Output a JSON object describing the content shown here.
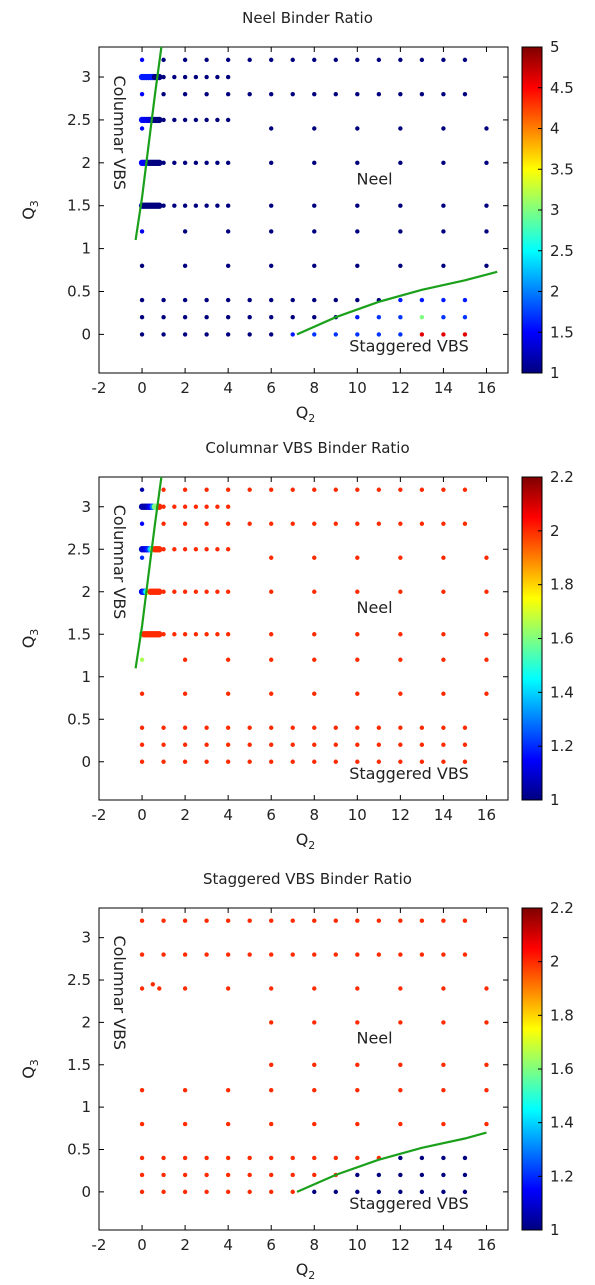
{
  "colormap": {
    "name": "jet",
    "stops": [
      "#00007f",
      "#0000ff",
      "#007fff",
      "#00ffff",
      "#7fff7f",
      "#ffff00",
      "#ff7f00",
      "#ff0000",
      "#7f0000"
    ]
  },
  "phase_boundary_color": "#1aa01a",
  "chart_data": [
    {
      "type": "scatter",
      "title": "Neel Binder Ratio",
      "xlabel": "Q",
      "xlabel_sub": "2",
      "ylabel": "Q",
      "ylabel_sub": "3",
      "xlim": [
        -2,
        17
      ],
      "ylim": [
        -0.45,
        3.35
      ],
      "xticks": [
        -2,
        0,
        2,
        4,
        6,
        8,
        10,
        12,
        14,
        16
      ],
      "xtick_labels": [
        "-2",
        "0",
        "2",
        "4",
        "6",
        "8",
        "10",
        "12",
        "14",
        "16"
      ],
      "yticks": [
        0,
        0.5,
        1,
        1.5,
        2,
        2.5,
        3
      ],
      "ytick_labels": [
        "0",
        "0.5",
        "1",
        "1.5",
        "2",
        "2.5",
        "3"
      ],
      "colorbar": {
        "min": 1,
        "max": 5,
        "ticks": [
          1,
          1.5,
          2,
          2.5,
          3,
          3.5,
          4,
          4.5,
          5
        ],
        "tick_labels": [
          "1",
          "1.5",
          "2",
          "2.5",
          "3",
          "3.5",
          "4",
          "4.5",
          "5"
        ]
      },
      "default_value": 1.0,
      "overrides": [
        {
          "x": 0,
          "y": 3.0,
          "v": 1.6
        },
        {
          "x": 0.1,
          "y": 3.0,
          "v": 1.6
        },
        {
          "x": 0.2,
          "y": 3.0,
          "v": 1.6
        },
        {
          "x": 0.3,
          "y": 3.0,
          "v": 1.6
        },
        {
          "x": 0.4,
          "y": 3.0,
          "v": 1.6
        },
        {
          "x": 0.5,
          "y": 3.0,
          "v": 1.6
        },
        {
          "x": 0,
          "y": 2.5,
          "v": 1.55
        },
        {
          "x": 0.1,
          "y": 2.5,
          "v": 1.5
        },
        {
          "x": 0.2,
          "y": 2.5,
          "v": 1.45
        },
        {
          "x": 0.3,
          "y": 2.5,
          "v": 1.4
        },
        {
          "x": 0.4,
          "y": 2.5,
          "v": 1.35
        },
        {
          "x": 0.5,
          "y": 2.5,
          "v": 1.3
        },
        {
          "x": 0,
          "y": 2.0,
          "v": 1.5
        },
        {
          "x": 0.1,
          "y": 2.0,
          "v": 1.5
        },
        {
          "x": 0.2,
          "y": 2.0,
          "v": 1.45
        },
        {
          "x": 0.3,
          "y": 2.0,
          "v": 1.4
        },
        {
          "x": 0,
          "y": 1.5,
          "v": 1.35
        },
        {
          "x": 0,
          "y": 3.2,
          "v": 1.5
        },
        {
          "x": 0,
          "y": 2.8,
          "v": 1.5
        },
        {
          "x": 0,
          "y": 2.4,
          "v": 1.5
        },
        {
          "x": 0,
          "y": 1.2,
          "v": 1.45
        },
        {
          "x": 7,
          "y": 0,
          "v": 1.6
        },
        {
          "x": 8,
          "y": 0,
          "v": 1.7
        },
        {
          "x": 9,
          "y": 0,
          "v": 1.7
        },
        {
          "x": 10,
          "y": 0,
          "v": 1.7
        },
        {
          "x": 11,
          "y": 0,
          "v": 1.7
        },
        {
          "x": 12,
          "y": 0,
          "v": 1.7
        },
        {
          "x": 13,
          "y": 0,
          "v": 4.6
        },
        {
          "x": 14,
          "y": 0,
          "v": 4.6
        },
        {
          "x": 15,
          "y": 0,
          "v": 4.6
        },
        {
          "x": 10,
          "y": 0.2,
          "v": 1.6
        },
        {
          "x": 11,
          "y": 0.2,
          "v": 1.7
        },
        {
          "x": 12,
          "y": 0.2,
          "v": 1.7
        },
        {
          "x": 13,
          "y": 0.2,
          "v": 3.0
        },
        {
          "x": 14,
          "y": 0.2,
          "v": 1.7
        },
        {
          "x": 15,
          "y": 0.2,
          "v": 1.7
        },
        {
          "x": 12,
          "y": 0.4,
          "v": 1.6
        },
        {
          "x": 13,
          "y": 0.4,
          "v": 1.6
        },
        {
          "x": 14,
          "y": 0.4,
          "v": 1.6
        },
        {
          "x": 15,
          "y": 0.4,
          "v": 1.6
        }
      ],
      "boundaries": [
        {
          "x": [
            -0.3,
            0.0,
            0.3,
            0.6,
            0.9
          ],
          "y": [
            1.1,
            1.6,
            2.2,
            2.8,
            3.35
          ]
        },
        {
          "x": [
            7.2,
            9.0,
            11.0,
            13.0,
            15.0,
            16.5
          ],
          "y": [
            0.0,
            0.2,
            0.38,
            0.52,
            0.63,
            0.73
          ]
        }
      ],
      "annotations": [
        {
          "text": "Columnar VBS",
          "x": -1.3,
          "y": 2.35,
          "rotate": 90
        },
        {
          "text": "Neel",
          "x": 10.8,
          "y": 1.75
        },
        {
          "text": "Staggered VBS",
          "x": 12.4,
          "y": -0.2
        }
      ]
    },
    {
      "type": "scatter",
      "title": "Columnar VBS Binder Ratio",
      "xlabel": "Q",
      "xlabel_sub": "2",
      "ylabel": "Q",
      "ylabel_sub": "3",
      "xlim": [
        -2,
        17
      ],
      "ylim": [
        -0.45,
        3.35
      ],
      "xticks": [
        -2,
        0,
        2,
        4,
        6,
        8,
        10,
        12,
        14,
        16
      ],
      "xtick_labels": [
        "-2",
        "0",
        "2",
        "4",
        "6",
        "8",
        "10",
        "12",
        "14",
        "16"
      ],
      "yticks": [
        0,
        0.5,
        1,
        1.5,
        2,
        2.5,
        3
      ],
      "ytick_labels": [
        "0",
        "0.5",
        "1",
        "1.5",
        "2",
        "2.5",
        "3"
      ],
      "colorbar": {
        "min": 1,
        "max": 2.2,
        "ticks": [
          1,
          1.2,
          1.4,
          1.6,
          1.8,
          2,
          2.2
        ],
        "tick_labels": [
          "1",
          "1.2",
          "1.4",
          "1.6",
          "1.8",
          "2",
          "2.2"
        ]
      },
      "default_value": 2.0,
      "overrides": [
        {
          "x": 0,
          "y": 3.2,
          "v": 1.05
        },
        {
          "x": 0,
          "y": 2.8,
          "v": 1.15
        },
        {
          "x": 0,
          "y": 2.4,
          "v": 1.2
        },
        {
          "x": 0,
          "y": 3.0,
          "v": 1.05
        },
        {
          "x": 0.1,
          "y": 3.0,
          "v": 1.05
        },
        {
          "x": 0.2,
          "y": 3.0,
          "v": 1.05
        },
        {
          "x": 0.3,
          "y": 3.0,
          "v": 1.1
        },
        {
          "x": 0.4,
          "y": 3.0,
          "v": 1.15
        },
        {
          "x": 0.5,
          "y": 3.0,
          "v": 1.3
        },
        {
          "x": 0.6,
          "y": 3.0,
          "v": 1.6
        },
        {
          "x": 0.7,
          "y": 3.0,
          "v": 1.6
        },
        {
          "x": 0,
          "y": 2.5,
          "v": 1.1
        },
        {
          "x": 0.1,
          "y": 2.5,
          "v": 1.1
        },
        {
          "x": 0.2,
          "y": 2.5,
          "v": 1.15
        },
        {
          "x": 0.3,
          "y": 2.5,
          "v": 1.2
        },
        {
          "x": 0.4,
          "y": 2.5,
          "v": 1.4
        },
        {
          "x": 0.5,
          "y": 2.5,
          "v": 1.65
        },
        {
          "x": 0,
          "y": 2.0,
          "v": 1.15
        },
        {
          "x": 0.1,
          "y": 2.0,
          "v": 1.2
        },
        {
          "x": 0.2,
          "y": 2.0,
          "v": 1.45
        },
        {
          "x": 0.3,
          "y": 2.0,
          "v": 1.7
        },
        {
          "x": 0,
          "y": 1.5,
          "v": 1.6
        },
        {
          "x": 0,
          "y": 1.2,
          "v": 1.65
        }
      ],
      "boundaries": [
        {
          "x": [
            -0.3,
            0.0,
            0.3,
            0.6,
            0.9
          ],
          "y": [
            1.1,
            1.6,
            2.2,
            2.8,
            3.35
          ]
        }
      ],
      "annotations": [
        {
          "text": "Columnar VBS",
          "x": -1.3,
          "y": 2.35,
          "rotate": 90
        },
        {
          "text": "Neel",
          "x": 10.8,
          "y": 1.75
        },
        {
          "text": "Staggered VBS",
          "x": 12.4,
          "y": -0.2
        }
      ]
    },
    {
      "type": "scatter",
      "title": "Staggered VBS Binder Ratio",
      "xlabel": "Q",
      "xlabel_sub": "2",
      "ylabel": "Q",
      "ylabel_sub": "3",
      "xlim": [
        -2,
        17
      ],
      "ylim": [
        -0.45,
        3.35
      ],
      "xticks": [
        -2,
        0,
        2,
        4,
        6,
        8,
        10,
        12,
        14,
        16
      ],
      "xtick_labels": [
        "-2",
        "0",
        "2",
        "4",
        "6",
        "8",
        "10",
        "12",
        "14",
        "16"
      ],
      "yticks": [
        0,
        0.5,
        1,
        1.5,
        2,
        2.5,
        3
      ],
      "ytick_labels": [
        "0",
        "0.5",
        "1",
        "1.5",
        "2",
        "2.5",
        "3"
      ],
      "colorbar": {
        "min": 1,
        "max": 2.2,
        "ticks": [
          1,
          1.2,
          1.4,
          1.6,
          1.8,
          2,
          2.2
        ],
        "tick_labels": [
          "1",
          "1.2",
          "1.4",
          "1.6",
          "1.8",
          "2",
          "2.2"
        ]
      },
      "default_value": 2.0,
      "overrides": [
        {
          "x": 8,
          "y": 0,
          "v": 1.0
        },
        {
          "x": 9,
          "y": 0,
          "v": 1.0
        },
        {
          "x": 10,
          "y": 0,
          "v": 1.0
        },
        {
          "x": 11,
          "y": 0,
          "v": 1.0
        },
        {
          "x": 12,
          "y": 0,
          "v": 1.0
        },
        {
          "x": 13,
          "y": 0,
          "v": 1.0
        },
        {
          "x": 14,
          "y": 0,
          "v": 1.0
        },
        {
          "x": 15,
          "y": 0,
          "v": 1.0
        },
        {
          "x": 10,
          "y": 0.2,
          "v": 1.0
        },
        {
          "x": 11,
          "y": 0.2,
          "v": 1.0
        },
        {
          "x": 12,
          "y": 0.2,
          "v": 1.0
        },
        {
          "x": 13,
          "y": 0.2,
          "v": 1.0
        },
        {
          "x": 14,
          "y": 0.2,
          "v": 1.0
        },
        {
          "x": 15,
          "y": 0.2,
          "v": 1.0
        },
        {
          "x": 12,
          "y": 0.4,
          "v": 1.0
        },
        {
          "x": 13,
          "y": 0.4,
          "v": 1.0
        },
        {
          "x": 14,
          "y": 0.4,
          "v": 1.0
        },
        {
          "x": 15,
          "y": 0.4,
          "v": 1.0
        }
      ],
      "boundaries": [
        {
          "x": [
            7.2,
            9.0,
            11.0,
            13.0,
            15.0,
            16.0
          ],
          "y": [
            0.0,
            0.2,
            0.38,
            0.52,
            0.63,
            0.7
          ]
        }
      ],
      "annotations": [
        {
          "text": "Columnar VBS",
          "x": -1.3,
          "y": 2.35,
          "rotate": 90
        },
        {
          "text": "Neel",
          "x": 10.8,
          "y": 1.75
        },
        {
          "text": "Staggered VBS",
          "x": 12.4,
          "y": -0.2
        }
      ]
    }
  ],
  "grid": {
    "full_x": [
      0,
      1,
      2,
      3,
      4,
      5,
      6,
      7,
      8,
      9,
      10,
      11,
      12,
      13,
      14,
      15
    ],
    "low_rows": [
      0,
      0.2,
      0.4
    ],
    "high_rows": [
      2.8,
      3.2
    ],
    "mid_x": [
      6,
      8,
      10,
      12,
      14,
      16
    ],
    "mid_rows": [
      1.5,
      2.0
    ],
    "left_x": [
      0,
      2,
      4,
      6,
      8,
      10,
      12,
      14,
      16
    ],
    "left_rows": [
      0.8,
      1.2
    ],
    "dense_rows": [
      1.5,
      2.0,
      2.5,
      3.0
    ],
    "dense_x": [
      0,
      0.1,
      0.2,
      0.3,
      0.4,
      0.5,
      0.6,
      0.7,
      0.8,
      1.0,
      1.5,
      2.0,
      2.5,
      3.0,
      3.5,
      4.0
    ]
  },
  "panel3_points": [
    [
      0,
      3.2
    ],
    [
      1,
      3.2
    ],
    [
      2,
      3.2
    ],
    [
      3,
      3.2
    ],
    [
      4,
      3.2
    ],
    [
      5,
      3.2
    ],
    [
      6,
      3.2
    ],
    [
      7,
      3.2
    ],
    [
      8,
      3.2
    ],
    [
      9,
      3.2
    ],
    [
      10,
      3.2
    ],
    [
      11,
      3.2
    ],
    [
      12,
      3.2
    ],
    [
      13,
      3.2
    ],
    [
      14,
      3.2
    ],
    [
      15,
      3.2
    ],
    [
      0,
      2.8
    ],
    [
      1,
      2.8
    ],
    [
      2,
      2.8
    ],
    [
      3,
      2.8
    ],
    [
      4,
      2.8
    ],
    [
      5,
      2.8
    ],
    [
      6,
      2.8
    ],
    [
      7,
      2.8
    ],
    [
      8,
      2.8
    ],
    [
      9,
      2.8
    ],
    [
      10,
      2.8
    ],
    [
      11,
      2.8
    ],
    [
      12,
      2.8
    ],
    [
      13,
      2.8
    ],
    [
      14,
      2.8
    ],
    [
      15,
      2.8
    ],
    [
      0,
      2.4
    ],
    [
      0.5,
      2.45
    ],
    [
      0.8,
      2.4
    ],
    [
      2,
      2.4
    ],
    [
      4,
      2.4
    ],
    [
      6,
      2.4
    ],
    [
      8,
      2.4
    ],
    [
      10,
      2.4
    ],
    [
      12,
      2.4
    ],
    [
      14,
      2.4
    ],
    [
      16,
      2.4
    ],
    [
      6,
      2.0
    ],
    [
      8,
      2.0
    ],
    [
      10,
      2.0
    ],
    [
      12,
      2.0
    ],
    [
      14,
      2.0
    ],
    [
      16,
      2.0
    ],
    [
      6,
      1.5
    ],
    [
      8,
      1.5
    ],
    [
      10,
      1.5
    ],
    [
      12,
      1.5
    ],
    [
      14,
      1.5
    ],
    [
      16,
      1.5
    ],
    [
      6,
      1.2
    ],
    [
      8,
      1.2
    ],
    [
      10,
      1.2
    ],
    [
      12,
      1.2
    ],
    [
      14,
      1.2
    ],
    [
      16,
      1.2
    ],
    [
      0,
      1.2
    ],
    [
      2,
      1.2
    ],
    [
      4,
      1.2
    ],
    [
      0,
      0.8
    ],
    [
      2,
      0.8
    ],
    [
      4,
      0.8
    ],
    [
      6,
      0.8
    ],
    [
      8,
      0.8
    ],
    [
      10,
      0.8
    ],
    [
      12,
      0.8
    ],
    [
      14,
      0.8
    ],
    [
      16,
      0.8
    ],
    [
      0,
      0.4
    ],
    [
      1,
      0.4
    ],
    [
      2,
      0.4
    ],
    [
      3,
      0.4
    ],
    [
      4,
      0.4
    ],
    [
      5,
      0.4
    ],
    [
      6,
      0.4
    ],
    [
      7,
      0.4
    ],
    [
      8,
      0.4
    ],
    [
      9,
      0.4
    ],
    [
      10,
      0.4
    ],
    [
      11,
      0.4
    ],
    [
      12,
      0.4
    ],
    [
      13,
      0.4
    ],
    [
      14,
      0.4
    ],
    [
      15,
      0.4
    ],
    [
      0,
      0.2
    ],
    [
      1,
      0.2
    ],
    [
      2,
      0.2
    ],
    [
      3,
      0.2
    ],
    [
      4,
      0.2
    ],
    [
      5,
      0.2
    ],
    [
      6,
      0.2
    ],
    [
      7,
      0.2
    ],
    [
      8,
      0.2
    ],
    [
      9,
      0.2
    ],
    [
      10,
      0.2
    ],
    [
      11,
      0.2
    ],
    [
      12,
      0.2
    ],
    [
      13,
      0.2
    ],
    [
      14,
      0.2
    ],
    [
      15,
      0.2
    ],
    [
      0,
      0
    ],
    [
      1,
      0
    ],
    [
      2,
      0
    ],
    [
      3,
      0
    ],
    [
      4,
      0
    ],
    [
      5,
      0
    ],
    [
      6,
      0
    ],
    [
      7,
      0
    ],
    [
      8,
      0
    ],
    [
      9,
      0
    ],
    [
      10,
      0
    ],
    [
      11,
      0
    ],
    [
      12,
      0
    ],
    [
      13,
      0
    ],
    [
      14,
      0
    ],
    [
      15,
      0
    ]
  ]
}
